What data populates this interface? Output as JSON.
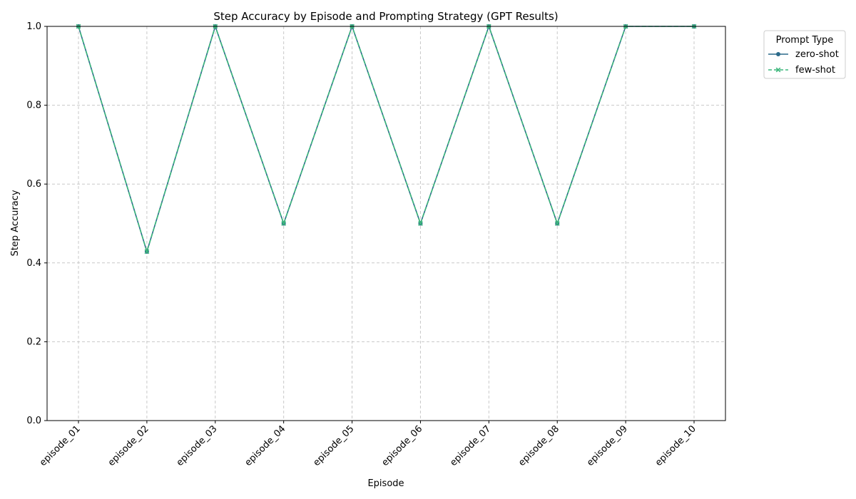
{
  "chart_data": {
    "type": "line",
    "title": "Step Accuracy by Episode and Prompting Strategy  (GPT Results)",
    "xlabel": "Episode",
    "ylabel": "Step Accuracy",
    "ylim": [
      0,
      1
    ],
    "yticks": [
      "0.0",
      "0.2",
      "0.4",
      "0.6",
      "0.8",
      "1.0"
    ],
    "categories": [
      "episode_01",
      "episode_02",
      "episode_03",
      "episode_04",
      "episode_05",
      "episode_06",
      "episode_07",
      "episode_08",
      "episode_09",
      "episode_10"
    ],
    "grid": true,
    "legend": {
      "title": "Prompt Type",
      "placement": "outside-top-right"
    },
    "series": [
      {
        "name": "zero-shot",
        "color": "#2b6a8a",
        "marker": "circle",
        "dash": "solid",
        "values": [
          1.0,
          0.4286,
          1.0,
          0.5,
          1.0,
          0.5,
          1.0,
          0.5,
          1.0,
          1.0
        ]
      },
      {
        "name": "few-shot",
        "color": "#3cb77b",
        "marker": "x",
        "dash": "dashed",
        "values": [
          1.0,
          0.4286,
          1.0,
          0.5,
          1.0,
          0.5,
          1.0,
          0.5,
          1.0,
          1.0
        ]
      }
    ]
  }
}
